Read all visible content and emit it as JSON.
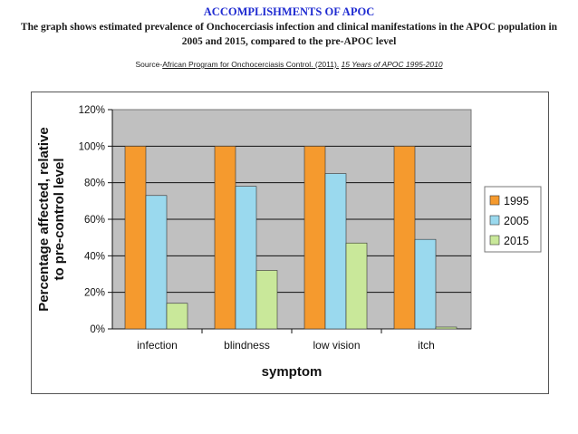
{
  "header": {
    "title": "ACCOMPLISHMENTS OF APOC",
    "description": "The graph shows estimated prevalence of Onchocerciasis infection and clinical manifestations in the APOC population in 2005 and 2015, compared to the pre-APOC level",
    "source_prefix": "Source-",
    "source_ref": "African Program for Onchocerciasis Control. (2011).",
    "source_book": "15 Years of APOC 1995-2010"
  },
  "chart_data": {
    "type": "bar",
    "categories": [
      "infection",
      "blindness",
      "low vision",
      "itch"
    ],
    "series": [
      {
        "name": "1995",
        "values": [
          100,
          100,
          100,
          100
        ],
        "color": "#f59a2e"
      },
      {
        "name": "2005",
        "values": [
          73,
          78,
          85,
          49
        ],
        "color": "#9ad9ee"
      },
      {
        "name": "2015",
        "values": [
          14,
          32,
          47,
          1
        ],
        "color": "#c9e89a"
      }
    ],
    "ylim": [
      0,
      120
    ],
    "yticks": [
      "0%",
      "20%",
      "40%",
      "60%",
      "80%",
      "100%",
      "120%"
    ],
    "xlabel": "symptom",
    "ylabel_lines": [
      "Percentage affected, relative",
      "to pre-control level"
    ],
    "grid": true,
    "legend_position": "right",
    "plot_background": "#c0c0c0"
  }
}
